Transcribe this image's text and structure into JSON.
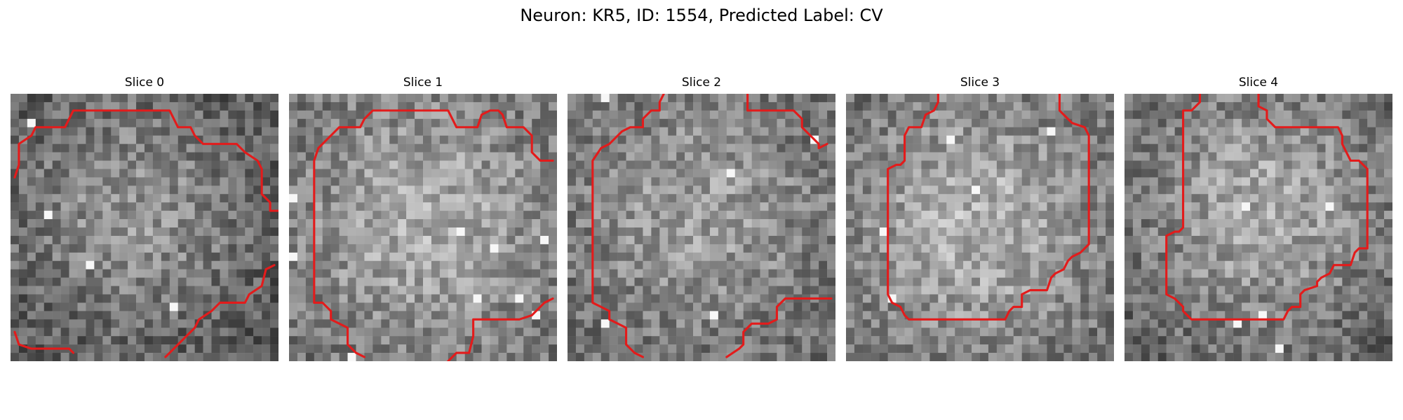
{
  "figure": {
    "title": "Neuron: KR5, ID: 1554, Predicted Label: CV",
    "colors": {
      "background": "#ffffff",
      "contour": "#e31b1b",
      "colormap": "gray"
    },
    "slices": [
      {
        "label": "Slice 0"
      },
      {
        "label": "Slice 1"
      },
      {
        "label": "Slice 2"
      },
      {
        "label": "Slice 3"
      },
      {
        "label": "Slice 4"
      }
    ]
  }
}
